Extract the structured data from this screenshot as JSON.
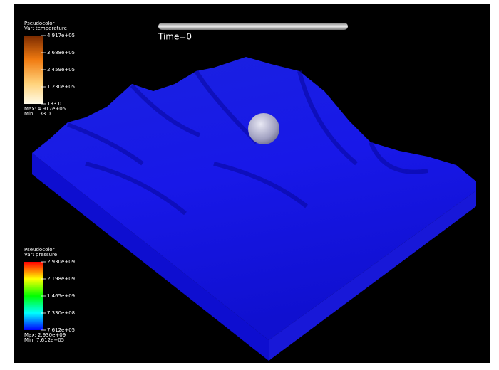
{
  "time_label": "Time=0",
  "legends": [
    {
      "title": "Pseudocolor",
      "var": "Var: temperature",
      "ticks": [
        "4.917e+05",
        "3.688e+05",
        "2.459e+05",
        "1.230e+05",
        "133.0"
      ],
      "max": "Max: 4.917e+05",
      "min": "Min: 133.0"
    },
    {
      "title": "Pseudocolor",
      "var": "Var: pressure",
      "ticks": [
        "2.930e+09",
        "2.198e+09",
        "1.465e+09",
        "7.330e+08",
        "7.612e+05"
      ],
      "max": "Max: 2.930e+09",
      "min": "Min: 7.612e+05"
    }
  ]
}
